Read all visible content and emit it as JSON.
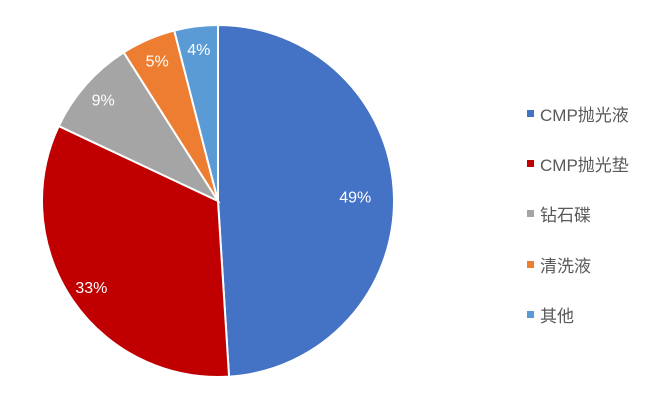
{
  "chart_data": {
    "type": "pie",
    "title": "",
    "start": "top",
    "direction": "clockwise",
    "legend_position": "right",
    "slices": [
      {
        "name": "CMP抛光液",
        "value": 49,
        "label": "49%",
        "color": "#4472C4"
      },
      {
        "name": "CMP抛光垫",
        "value": 33,
        "label": "33%",
        "color": "#C00000"
      },
      {
        "name": "钻石碟",
        "value": 9,
        "label": "9%",
        "color": "#A5A5A5"
      },
      {
        "name": "清洗液",
        "value": 5,
        "label": "5%",
        "color": "#ED7D31"
      },
      {
        "name": "其他",
        "value": 4,
        "label": "4%",
        "color": "#5B9BD5"
      }
    ]
  }
}
